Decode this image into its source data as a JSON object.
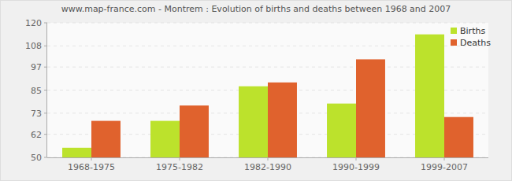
{
  "chart_data": {
    "type": "bar",
    "title": "www.map-france.com - Montrem : Evolution of births and deaths between 1968 and 2007",
    "categories": [
      "1968-1975",
      "1975-1982",
      "1982-1990",
      "1990-1999",
      "1999-2007"
    ],
    "series": [
      {
        "name": "Births",
        "color": "#bce22c",
        "values": [
          55,
          69,
          87,
          78,
          114
        ]
      },
      {
        "name": "Deaths",
        "color": "#e0622d",
        "values": [
          69,
          77,
          89,
          101,
          71
        ]
      }
    ],
    "ylim": [
      50,
      120
    ],
    "yticks": [
      50,
      62,
      73,
      85,
      97,
      108,
      120
    ],
    "grid": true,
    "legend": "top-right"
  }
}
